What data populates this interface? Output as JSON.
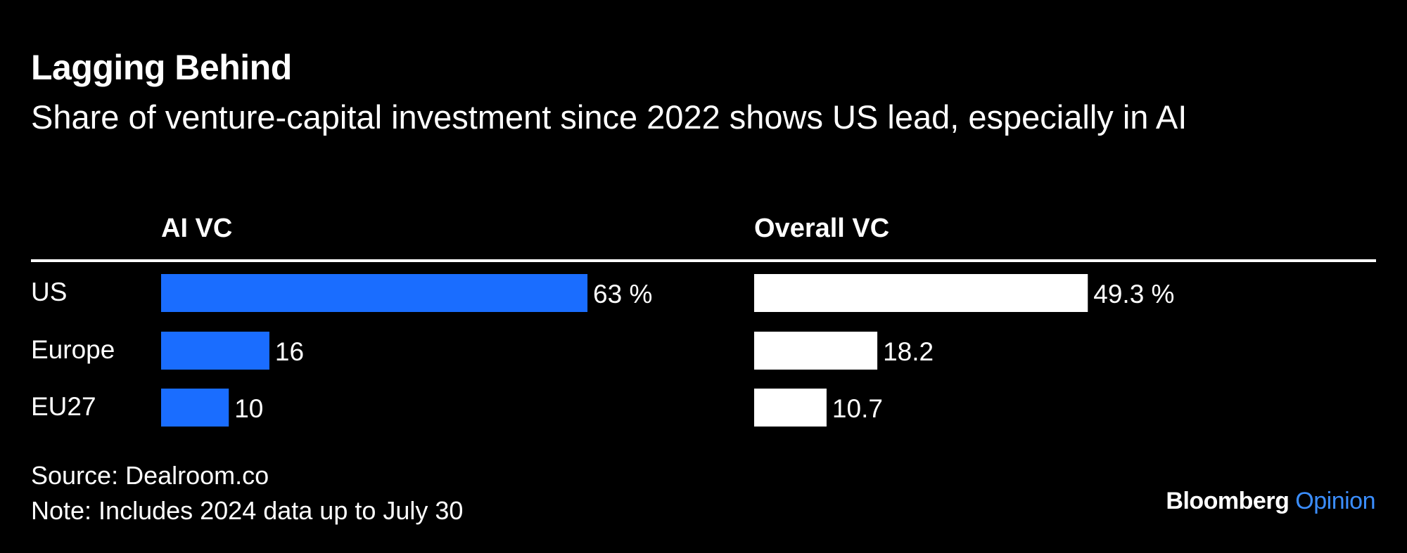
{
  "title": "Lagging Behind",
  "subtitle": "Share of venture-capital investment since 2022 shows US lead, especially in AI",
  "source": "Source: Dealroom.co",
  "note": "Note: Includes 2024 data up to July 30",
  "brand": {
    "name": "Bloomberg",
    "section": "Opinion"
  },
  "colors": {
    "background": "#000000",
    "ai_bar": "#1a6dff",
    "overall_bar": "#ffffff",
    "text": "#ffffff",
    "brand_accent": "#3b8eff"
  },
  "chart_data": {
    "type": "bar",
    "orientation": "horizontal",
    "unit": "%",
    "categories": [
      "US",
      "Europe",
      "EU27"
    ],
    "series": [
      {
        "name": "AI VC",
        "values": [
          63,
          16,
          10
        ],
        "labels": [
          "63 %",
          "16",
          "10"
        ],
        "color": "#1a6dff"
      },
      {
        "name": "Overall VC",
        "values": [
          49.3,
          18.2,
          10.7
        ],
        "labels": [
          "49.3 %",
          "18.2",
          "10.7"
        ],
        "color": "#ffffff"
      }
    ],
    "xlabel": "",
    "ylabel": "",
    "grid": false,
    "legend": "none"
  }
}
